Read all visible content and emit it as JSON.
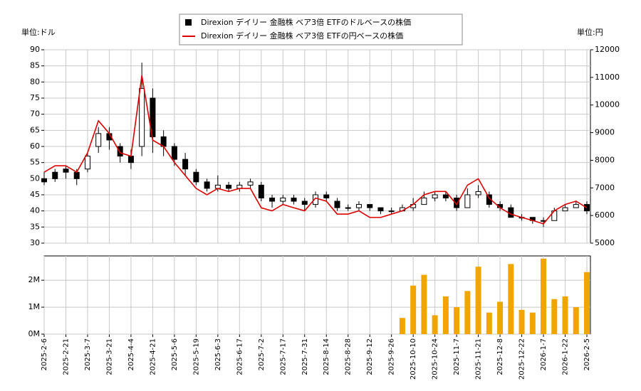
{
  "chart_data": {
    "type": "candlestick",
    "y_unit_label": "単位:ドル",
    "y2_unit_label": "単位:円",
    "legend": "top",
    "grid": true,
    "categories": [
      "2025-2-6",
      null,
      "2025-2-21",
      null,
      "2025-3-7",
      null,
      "2025-3-21",
      null,
      "2025-4-4",
      null,
      "2025-4-21",
      null,
      "2025-5-6",
      null,
      "2025-5-19",
      null,
      "2025-6-3",
      null,
      "2025-6-17",
      null,
      "2025-7-2",
      null,
      "2025-7-17",
      null,
      "2025-7-31",
      null,
      "2025-8-14",
      null,
      "2025-8-28",
      null,
      "2025-9-12",
      null,
      "2025-9-26",
      null,
      "2025-10-10",
      null,
      "2025-10-24",
      null,
      "2025-11-7",
      null,
      "2025-11-21",
      null,
      "2025-12-8",
      null,
      "2025-12-22",
      null,
      "2026-1-7",
      null,
      "2026-1-22",
      null,
      "2026-2-5"
    ],
    "ohlc": {
      "name": "Direxion デイリー 金融株 ベア3倍 ETFのドルベースの株価",
      "color": "#000000",
      "open": [
        50,
        52,
        53,
        52,
        53,
        60,
        64,
        60,
        57,
        60,
        75,
        63,
        60,
        56,
        52,
        49,
        47,
        48,
        47,
        48,
        48,
        44,
        43,
        44,
        43,
        42,
        45,
        43,
        41,
        41,
        42,
        41,
        40,
        40,
        41,
        42,
        44,
        45,
        44,
        41,
        45,
        45,
        42,
        41,
        38,
        38,
        37,
        37,
        40,
        41,
        42
      ],
      "high": [
        52,
        53,
        54,
        53,
        58,
        66,
        66,
        61,
        59,
        86,
        78,
        65,
        61,
        58,
        53,
        50,
        51,
        49,
        49,
        50,
        49,
        45,
        45,
        45,
        44,
        46,
        46,
        44,
        42,
        43,
        42,
        41,
        41,
        42,
        44,
        46,
        46,
        46,
        45,
        47,
        48,
        46,
        43,
        42,
        39,
        38,
        38,
        41,
        42,
        43,
        43
      ],
      "low": [
        48,
        49,
        50,
        48,
        52,
        58,
        59,
        55,
        53,
        57,
        58,
        57,
        54,
        51,
        48,
        46,
        46,
        46,
        46,
        47,
        43,
        41,
        42,
        42,
        40,
        41,
        43,
        40,
        40,
        40,
        40,
        39,
        39,
        40,
        40,
        42,
        43,
        43,
        40,
        41,
        44,
        41,
        40,
        38,
        37,
        36,
        35,
        37,
        40,
        41,
        39
      ],
      "close": [
        49,
        50,
        52,
        50,
        57,
        64,
        62,
        57,
        55,
        78,
        63,
        60,
        56,
        53,
        49,
        47,
        48,
        47,
        48,
        49,
        44,
        43,
        44,
        43,
        42,
        45,
        44,
        41,
        41,
        42,
        41,
        40,
        40,
        41,
        42,
        44,
        45,
        44,
        41,
        45,
        46,
        42,
        41,
        38,
        38,
        37,
        37,
        40,
        41,
        42,
        40
      ]
    },
    "series": [
      {
        "name": "Direxion デイリー 金融株 ベア3倍 ETFの円ベースの株価",
        "color": "#dd0000",
        "axis": "y2",
        "values": [
          7570,
          7800,
          7800,
          7570,
          8270,
          9430,
          8970,
          8270,
          8150,
          11070,
          8730,
          8500,
          7920,
          7450,
          6980,
          6750,
          6980,
          6870,
          6980,
          6980,
          6280,
          6170,
          6400,
          6280,
          6170,
          6630,
          6520,
          6050,
          6050,
          6170,
          5930,
          5930,
          6050,
          6170,
          6400,
          6750,
          6870,
          6870,
          6400,
          7100,
          7330,
          6630,
          6280,
          6050,
          5930,
          5820,
          5700,
          6170,
          6400,
          6520,
          6280
        ]
      }
    ],
    "ylim": [
      30,
      90
    ],
    "yticks": [
      30,
      35,
      40,
      45,
      50,
      55,
      60,
      65,
      70,
      75,
      80,
      85,
      90
    ],
    "y2lim": [
      5000,
      12000
    ],
    "y2ticks": [
      5000,
      6000,
      7000,
      8000,
      9000,
      10000,
      11000,
      12000
    ],
    "volume": {
      "type": "bar",
      "color": "#f0a500",
      "values": [
        null,
        null,
        null,
        null,
        null,
        null,
        null,
        null,
        null,
        null,
        null,
        null,
        null,
        null,
        null,
        null,
        null,
        null,
        null,
        null,
        null,
        null,
        null,
        null,
        null,
        null,
        null,
        null,
        null,
        null,
        null,
        null,
        null,
        0.6,
        1.8,
        2.2,
        0.7,
        1.4,
        1.0,
        1.6,
        2.5,
        0.8,
        1.2,
        2.6,
        0.9,
        0.8,
        2.8,
        1.3,
        1.4,
        1.0,
        2.3
      ],
      "ylim": [
        0,
        2.9
      ],
      "yticks": [
        {
          "value": 0,
          "label": "0M"
        },
        {
          "value": 1,
          "label": "1M"
        },
        {
          "value": 2,
          "label": "2M"
        }
      ]
    }
  }
}
